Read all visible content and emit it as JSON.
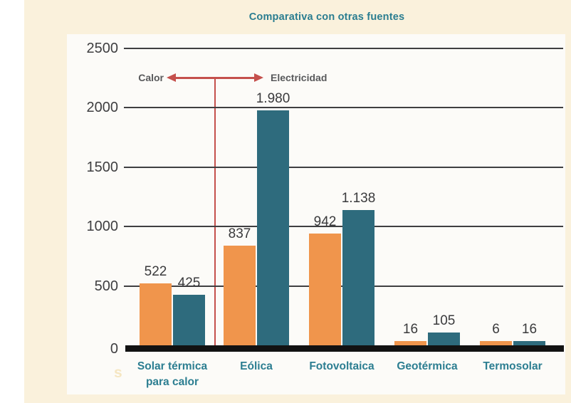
{
  "title": "Comparativa con otras fuentes",
  "annotation": {
    "left_label": "Calor",
    "right_label": "Electricidad"
  },
  "watermark": "s",
  "chart_data": {
    "type": "bar",
    "title": "Comparativa con otras fuentes",
    "categories": [
      "Solar térmica para calor",
      "Eólica",
      "Fotovoltaica",
      "Geotérmica",
      "Termosolar"
    ],
    "category_lines": [
      [
        "Solar térmica",
        "para calor"
      ],
      [
        "Eólica"
      ],
      [
        "Fotovoltaica"
      ],
      [
        "Geotérmica"
      ],
      [
        "Termosolar"
      ]
    ],
    "series": [
      {
        "key": "orange",
        "color": "#F0954C",
        "values": [
          522,
          837,
          942,
          16,
          6
        ],
        "value_labels": [
          "522",
          "837",
          "942",
          "16",
          "6"
        ]
      },
      {
        "key": "teal",
        "color": "#2E6B7D",
        "values": [
          425,
          1980,
          1138,
          105,
          16
        ],
        "value_labels": [
          "425",
          "1.980",
          "1.138",
          "105",
          "16"
        ]
      }
    ],
    "y_ticks": [
      0,
      500,
      1000,
      1500,
      2000,
      2500
    ],
    "y_tick_labels": [
      "0",
      "500",
      "1000",
      "1500",
      "2000",
      "2500"
    ],
    "ylim": [
      0,
      2500
    ],
    "grid": true,
    "legend": "none",
    "annotation": {
      "left": "Calor",
      "right": "Electricidad"
    }
  },
  "colors": {
    "page_background": "#FFFFFF",
    "panel_background": "#FAF1DC",
    "card_background": "#FCFBF8",
    "orange_bar": "#F0954C",
    "teal_bar": "#2E6B7D",
    "gridline": "#3F3F41",
    "axis_text": "#3E3E40",
    "value_text": "#3A3A3C",
    "baseline": "#121212",
    "title_text": "#2A7D90",
    "category_text": "#2C7E91",
    "annotation_text": "#58595B",
    "arrow_red": "#C5504C",
    "watermark_text": "#F5E6C2"
  }
}
